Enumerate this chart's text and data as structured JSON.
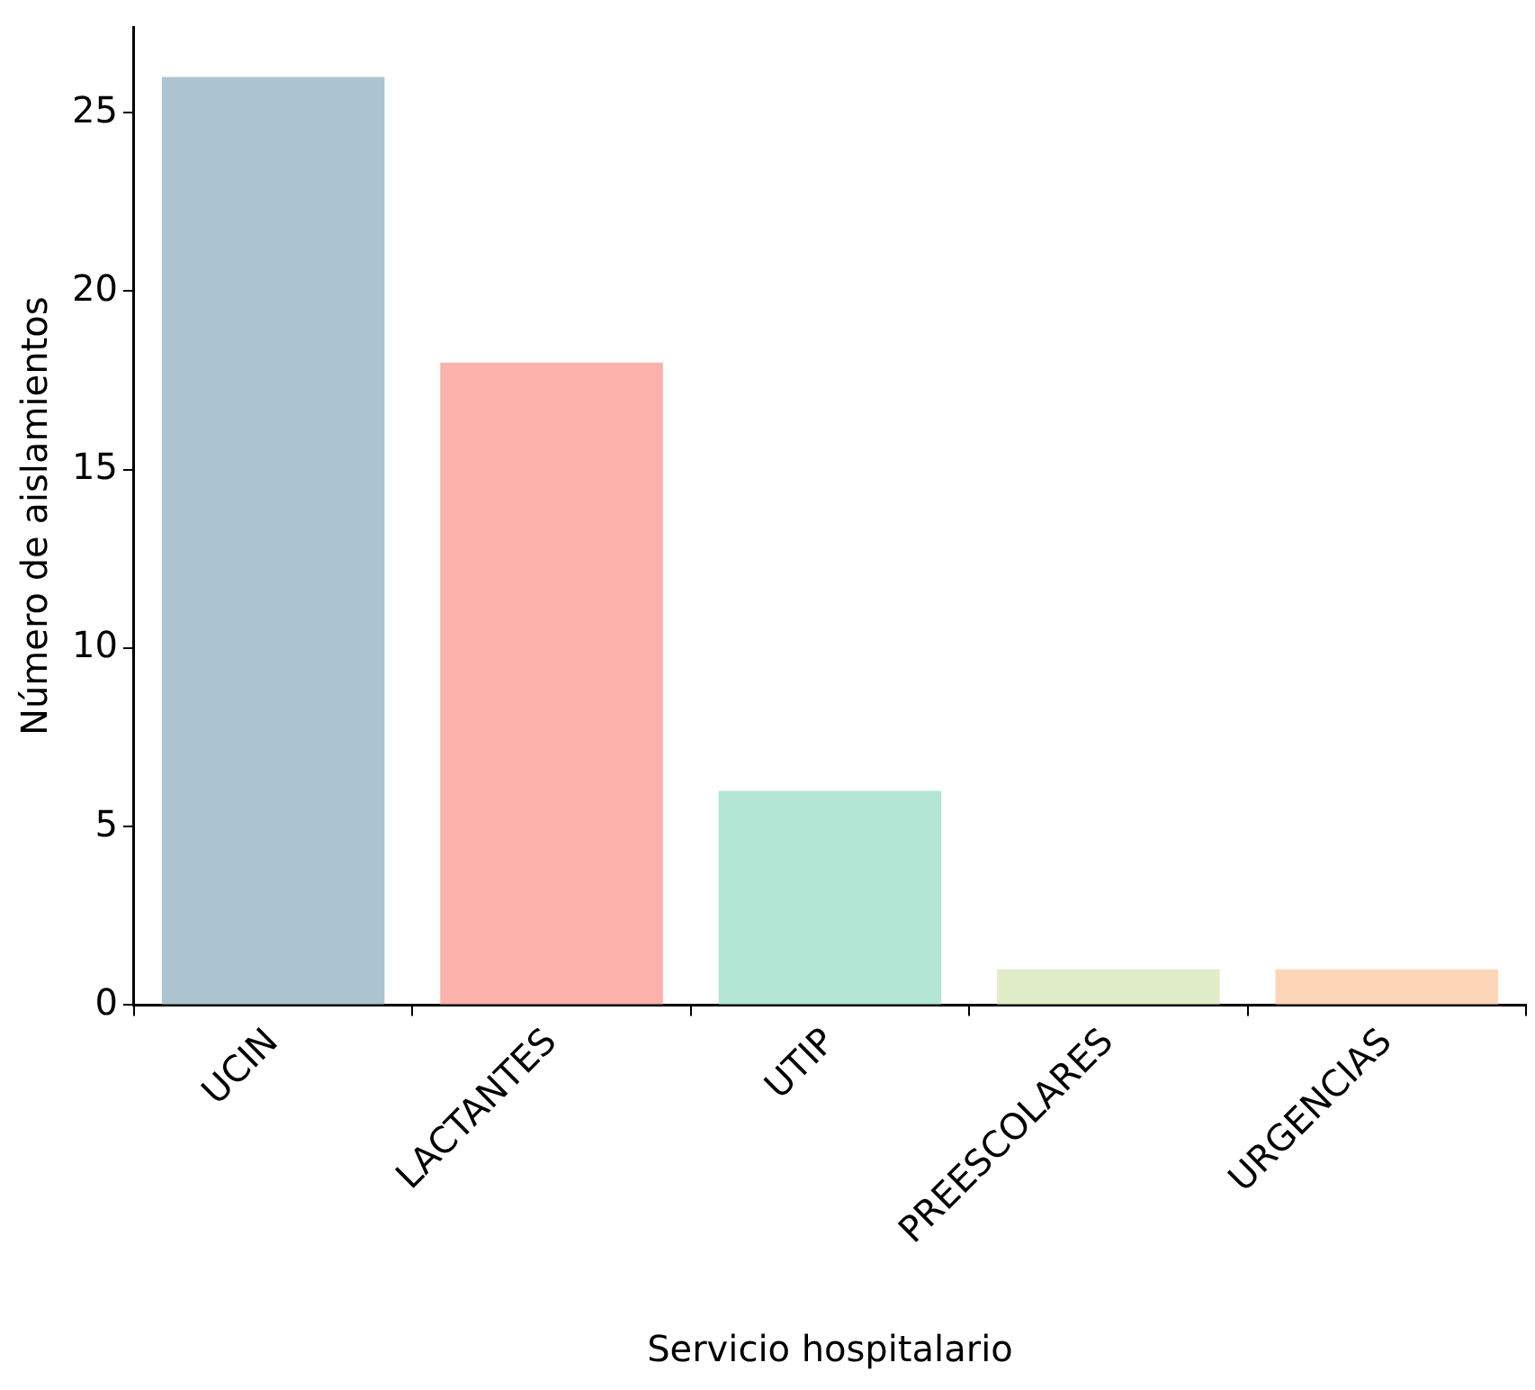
{
  "chart_data": {
    "type": "bar",
    "xlabel": "Servicio hospitalario",
    "ylabel": "Número de aislamientos",
    "categories": [
      "UCIN",
      "LACTANTES",
      "UTIP",
      "PREESCOLARES",
      "URGENCIAS"
    ],
    "values": [
      26,
      18,
      6,
      1,
      1
    ],
    "colors": [
      "#abc4cf",
      "#fab2ab",
      "#b3e6d5",
      "#e1edc8",
      "#fdd6b8"
    ],
    "ylim": [
      0,
      27.4
    ],
    "yticks": [
      0,
      5,
      10,
      15,
      20,
      25
    ],
    "grid": false,
    "legend": false
  }
}
